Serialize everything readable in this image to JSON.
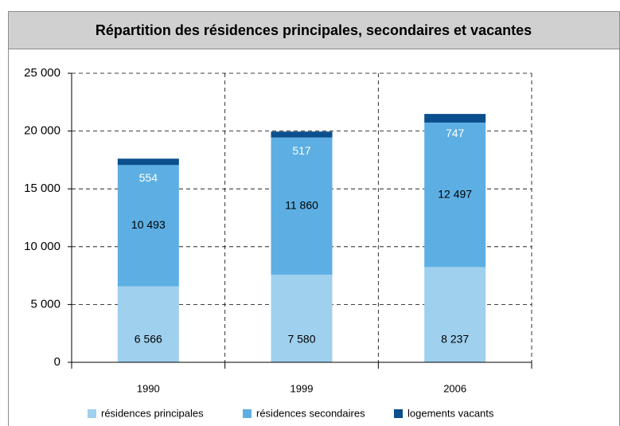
{
  "chart_data": {
    "type": "stacked_bar",
    "title": "Répartition des résidences principales, secondaires et vacantes",
    "categories": [
      "1990",
      "1999",
      "2006"
    ],
    "series": [
      {
        "name": "résidences principales",
        "color": "#9fd0ee",
        "label_color": "#000000",
        "values": [
          6566,
          7580,
          8237
        ],
        "value_labels": [
          "6 566",
          "7 580",
          "8 237"
        ]
      },
      {
        "name": "résidences secondaires",
        "color": "#5dafe3",
        "label_color": "#000000",
        "values": [
          10493,
          11860,
          12497
        ],
        "value_labels": [
          "10 493",
          "11 860",
          "12 497"
        ]
      },
      {
        "name": "logements vacants",
        "color": "#0b4f8e",
        "label_color": "#ffffff",
        "values": [
          554,
          517,
          747
        ]
      }
    ],
    "ylim": [
      0,
      25000
    ],
    "yticks": [
      0,
      {
        "value": 5000,
        "label": "5 000"
      },
      {
        "value": 10000,
        "label": "10 000"
      },
      {
        "value": 15000,
        "label": "15 000"
      },
      {
        "value": 20000,
        "label": "20 000"
      },
      {
        "value": 25000,
        "label": "25 000"
      }
    ],
    "grid": true,
    "legend": "bottom"
  }
}
